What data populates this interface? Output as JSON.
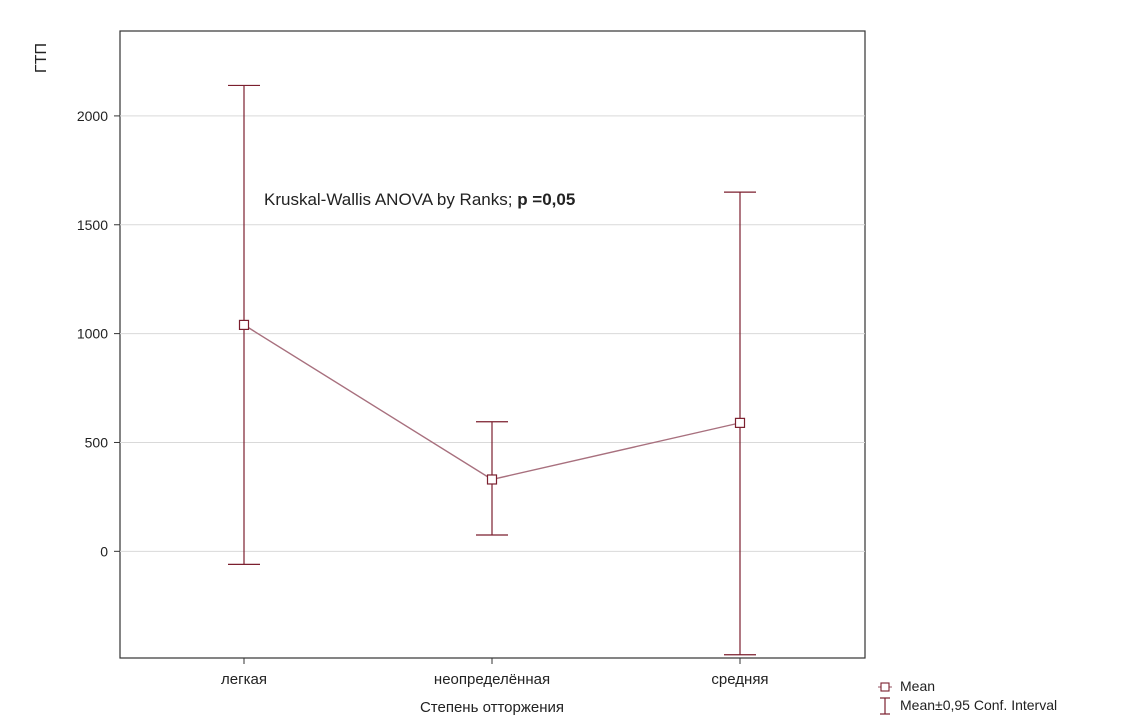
{
  "chart_data": {
    "type": "line",
    "title": "",
    "xlabel": "Степень отторжения",
    "ylabel": "ГТП",
    "categories": [
      "легкая",
      "неопределённая",
      "средняя"
    ],
    "series": [
      {
        "name": "Mean",
        "values": [
          1040,
          330,
          590
        ],
        "ci_lower": [
          -60,
          75,
          -475
        ],
        "ci_upper": [
          2140,
          595,
          1650
        ]
      }
    ],
    "yticks": [
      0,
      500,
      1000,
      1500,
      2000
    ],
    "ylim": [
      -490,
      2390
    ],
    "grid": true,
    "annotation": {
      "text": "Kruskal-Wallis ANOVA by Ranks; ",
      "bold": "p =0,05"
    },
    "legend": {
      "placement": "bottom-right",
      "items": [
        "Mean",
        "Mean±0,95 Conf. Interval"
      ]
    },
    "colors": {
      "series": "#a8707e",
      "errorbar": "#7b1f2e",
      "grid": "#d9d9d9",
      "axis": "#333333",
      "text": "#222222"
    }
  }
}
